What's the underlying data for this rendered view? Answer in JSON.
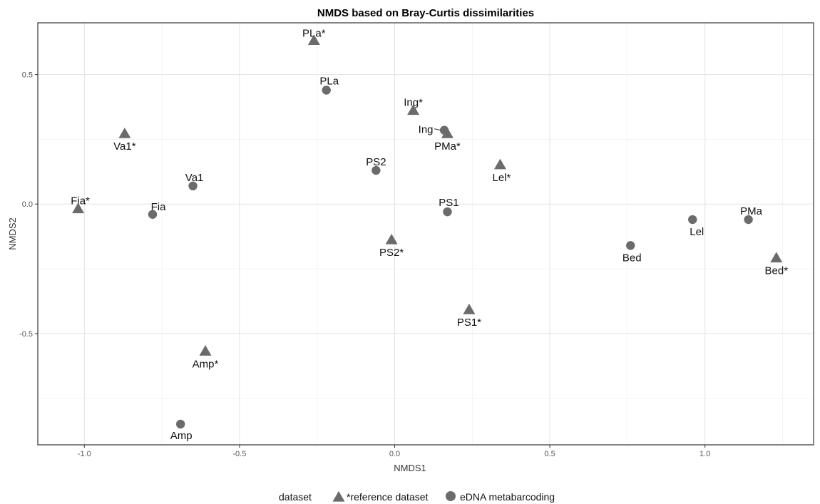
{
  "chart_data": {
    "type": "scatter",
    "title": "NMDS based on Bray-Curtis dissimilarities",
    "xlabel": "NMDS1",
    "ylabel": "NMDS2",
    "xlim": [
      -1.15,
      1.35
    ],
    "ylim": [
      -0.93,
      0.7
    ],
    "x_ticks": [
      -1.0,
      -0.5,
      0.0,
      0.5,
      1.0
    ],
    "x_tick_labels": [
      "-1.0",
      "-0.5",
      "0.0",
      "0.5",
      "1.0"
    ],
    "y_ticks": [
      -0.5,
      0.0,
      0.5
    ],
    "y_tick_labels": [
      "-0.5",
      "0.0",
      "0.5"
    ],
    "grid": true,
    "legend": {
      "title": "dataset",
      "position": "bottom"
    },
    "point_color": "#6b6b6b",
    "series": [
      {
        "name": "*reference dataset",
        "marker": "triangle",
        "points": [
          {
            "label": "PLa*",
            "x": -0.26,
            "y": 0.63
          },
          {
            "label": "Ing*",
            "x": 0.06,
            "y": 0.36
          },
          {
            "label": "PMa*",
            "x": 0.17,
            "y": 0.27
          },
          {
            "label": "Va1*",
            "x": -0.87,
            "y": 0.27
          },
          {
            "label": "Lel*",
            "x": 0.34,
            "y": 0.15
          },
          {
            "label": "Fia*",
            "x": -1.02,
            "y": -0.02
          },
          {
            "label": "PS2*",
            "x": -0.01,
            "y": -0.14
          },
          {
            "label": "Bed*",
            "x": 1.23,
            "y": -0.21
          },
          {
            "label": "PS1*",
            "x": 0.24,
            "y": -0.41
          },
          {
            "label": "Amp*",
            "x": -0.61,
            "y": -0.57
          }
        ]
      },
      {
        "name": "eDNA metabarcoding",
        "marker": "circle",
        "points": [
          {
            "label": "PLa",
            "x": -0.22,
            "y": 0.44
          },
          {
            "label": "Ing",
            "x": 0.16,
            "y": 0.285
          },
          {
            "label": "PS2",
            "x": -0.06,
            "y": 0.13
          },
          {
            "label": "Va1",
            "x": -0.65,
            "y": 0.07
          },
          {
            "label": "Fia",
            "x": -0.78,
            "y": -0.04
          },
          {
            "label": "PS1",
            "x": 0.17,
            "y": -0.03
          },
          {
            "label": "Lel",
            "x": 0.96,
            "y": -0.06
          },
          {
            "label": "PMa",
            "x": 1.14,
            "y": -0.06
          },
          {
            "label": "Bed",
            "x": 0.76,
            "y": -0.16
          },
          {
            "label": "Amp",
            "x": -0.69,
            "y": -0.85
          }
        ]
      }
    ]
  }
}
